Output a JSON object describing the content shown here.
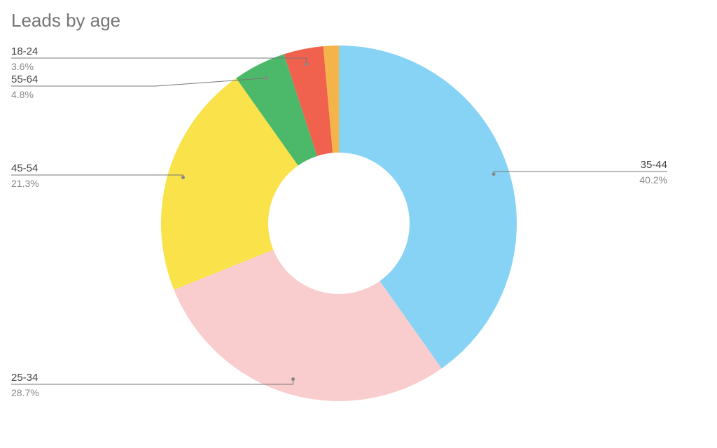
{
  "chart_data": {
    "type": "donut",
    "title": "Leads by age",
    "categories": [
      "35-44",
      "25-34",
      "45-54",
      "55-64",
      "18-24",
      null
    ],
    "values": [
      40.2,
      28.7,
      21.3,
      4.8,
      3.6,
      1.4
    ],
    "value_labels": [
      "40.2%",
      "28.7%",
      "21.3%",
      "4.8%",
      "3.6%",
      null
    ],
    "colors": [
      "#87d3f5",
      "#f9cdcd",
      "#f9e24a",
      "#4cb96a",
      "#f0614e",
      "#f5b44a"
    ]
  }
}
